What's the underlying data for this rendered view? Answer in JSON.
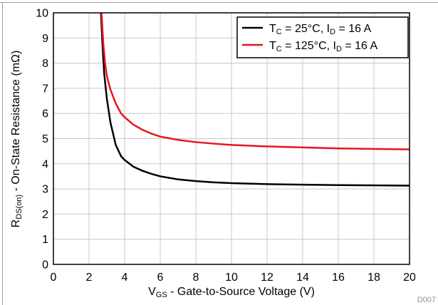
{
  "figure_id": "D007",
  "chart_data": {
    "type": "line",
    "xlabel": {
      "main": "V",
      "sub": "GS",
      "rest": " - Gate-to-Source Voltage (V)"
    },
    "ylabel": {
      "main": "R",
      "sub": "DS(on)",
      "rest": " - On-State Resistance (mΩ)"
    },
    "xlim": [
      0,
      20
    ],
    "ylim": [
      0,
      10
    ],
    "x_ticks": [
      0,
      2,
      4,
      6,
      8,
      10,
      12,
      14,
      16,
      18,
      20
    ],
    "y_ticks": [
      0,
      1,
      2,
      3,
      4,
      5,
      6,
      7,
      8,
      9,
      10
    ],
    "grid": true,
    "legend_position": "top-right",
    "series": [
      {
        "legend": {
          "a": "T",
          "a_sub": "C",
          "b": " = 25°C, I",
          "b_sub": "D",
          "c": " = 16 A"
        },
        "color": "#000000",
        "x": [
          2.67,
          2.75,
          2.85,
          3.0,
          3.2,
          3.5,
          3.8,
          4.0,
          4.5,
          5.0,
          5.5,
          6.0,
          7.0,
          8.0,
          9.0,
          10.0,
          12.0,
          14.0,
          16.0,
          18.0,
          20.0
        ],
        "y": [
          10.0,
          8.8,
          7.6,
          6.6,
          5.65,
          4.75,
          4.3,
          4.15,
          3.88,
          3.72,
          3.6,
          3.5,
          3.38,
          3.31,
          3.26,
          3.23,
          3.19,
          3.17,
          3.15,
          3.14,
          3.13
        ]
      },
      {
        "legend": {
          "a": "T",
          "a_sub": "C",
          "b": " = 125°C, I",
          "b_sub": "D",
          "c": " = 16 A"
        },
        "color": "#e8141e",
        "x": [
          2.7,
          2.8,
          2.9,
          3.0,
          3.2,
          3.5,
          3.8,
          4.0,
          4.5,
          5.0,
          5.5,
          6.0,
          7.0,
          8.0,
          9.0,
          10.0,
          12.0,
          14.0,
          16.0,
          18.0,
          20.0
        ],
        "y": [
          10.0,
          8.8,
          8.0,
          7.5,
          6.95,
          6.4,
          6.0,
          5.85,
          5.55,
          5.35,
          5.2,
          5.08,
          4.95,
          4.86,
          4.8,
          4.75,
          4.69,
          4.65,
          4.61,
          4.59,
          4.57
        ]
      }
    ]
  }
}
